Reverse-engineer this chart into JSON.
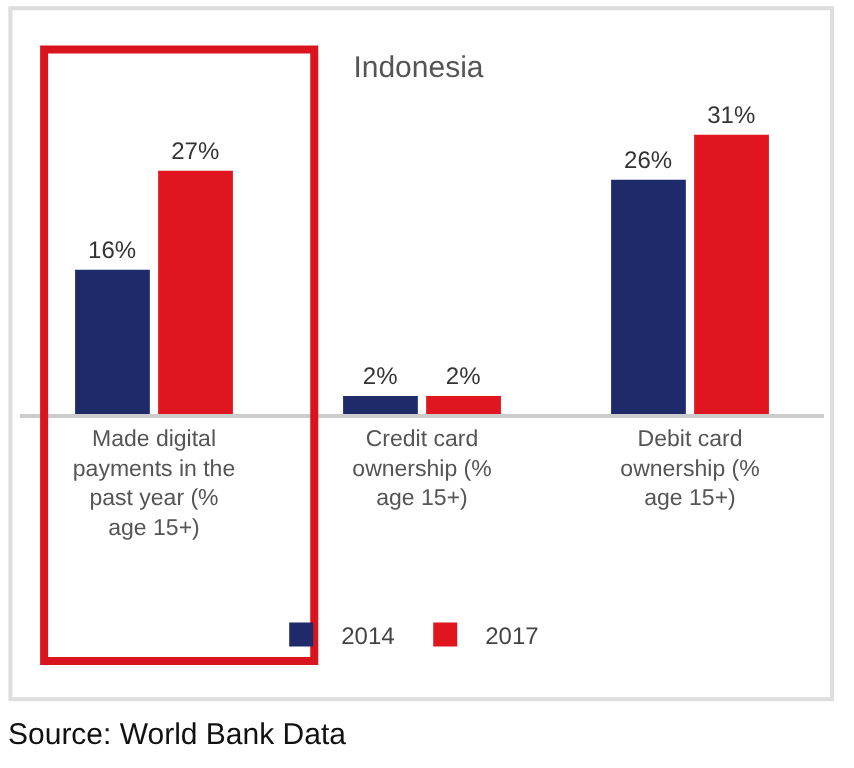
{
  "chart_data": {
    "type": "bar",
    "title": "Indonesia",
    "categories": [
      "Made digital payments in the past year (% age 15+)",
      "Credit card ownership (% age 15+)",
      "Debit card ownership (% age 15+)"
    ],
    "series": [
      {
        "name": "2014",
        "color": "#1f2a6b",
        "values": [
          16,
          2,
          26
        ],
        "value_labels": [
          "16%",
          "2%",
          "26%"
        ]
      },
      {
        "name": "2017",
        "color": "#e0151f",
        "values": [
          27,
          2,
          31
        ],
        "value_labels": [
          "27%",
          "2%",
          "31%"
        ]
      }
    ],
    "legend": "bottom",
    "annotations": [
      "Source: World Bank Data"
    ]
  }
}
